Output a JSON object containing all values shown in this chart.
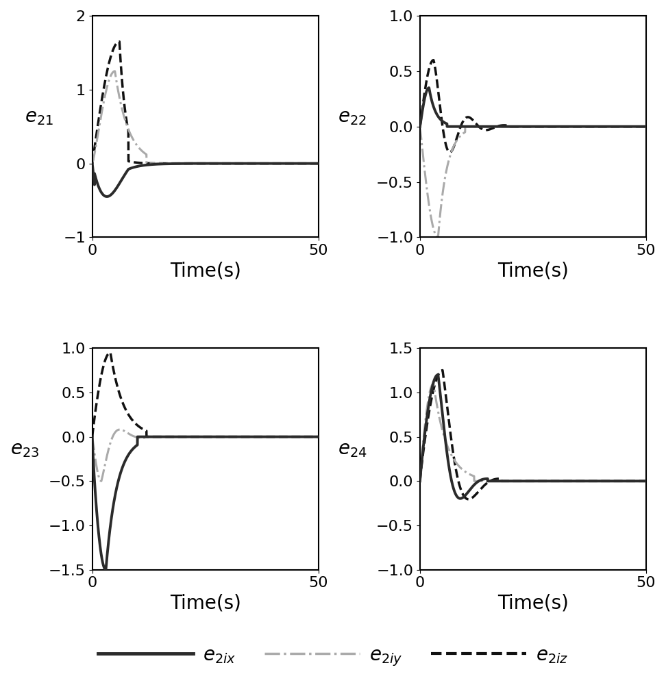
{
  "xlim": [
    0,
    50
  ],
  "time_end": 50,
  "dt": 0.02,
  "subplots": [
    {
      "ylabel": "$e_{21}$",
      "ylim": [
        -1,
        2
      ],
      "yticks": [
        -1,
        0,
        1,
        2
      ]
    },
    {
      "ylabel": "$e_{22}$",
      "ylim": [
        -1,
        1
      ],
      "yticks": [
        -1,
        -0.5,
        0,
        0.5,
        1
      ]
    },
    {
      "ylabel": "$e_{23}$",
      "ylim": [
        -1.5,
        1
      ],
      "yticks": [
        -1.5,
        -1,
        -0.5,
        0,
        0.5,
        1
      ]
    },
    {
      "ylabel": "$e_{24}$",
      "ylim": [
        -1,
        1.5
      ],
      "yticks": [
        -1,
        -0.5,
        0,
        0.5,
        1,
        1.5
      ]
    }
  ],
  "legend_labels": [
    "$e_{2ix}$",
    "$e_{2iy}$",
    "$e_{2iz}$"
  ],
  "colors": {
    "e2ix": "#2b2b2b",
    "e2iy": "#aaaaaa",
    "e2iz": "#111111"
  },
  "xlabel": "Time(s)",
  "label_fontsize": 20,
  "tick_fontsize": 16,
  "legend_fontsize": 20
}
